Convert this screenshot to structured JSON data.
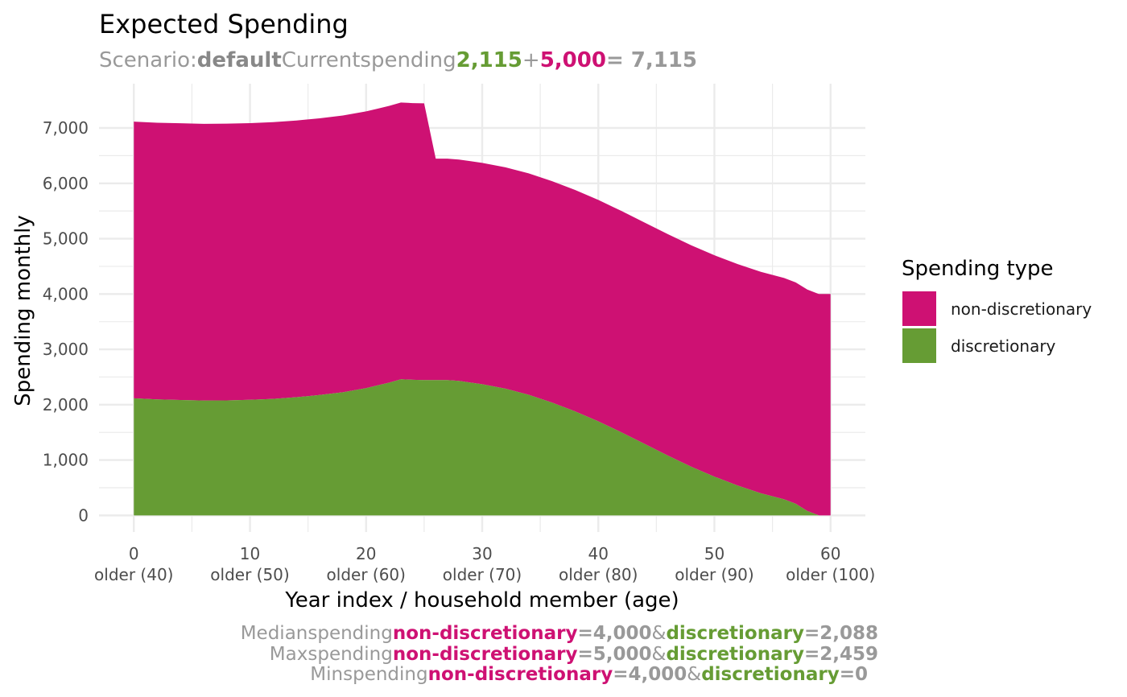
{
  "colors": {
    "non_discretionary": "#CE1173",
    "discretionary": "#669C34",
    "muted": "#999999",
    "muted_bold": "#888888",
    "grid": "#EBEBEB"
  },
  "subtitle": {
    "parts": [
      {
        "text": "Scenario:",
        "style": "muted"
      },
      {
        "text": "default",
        "style": "bold-dark"
      },
      {
        "text": "Current",
        "style": "muted"
      },
      {
        "text": "spending",
        "style": "muted"
      },
      {
        "text": "2,115",
        "style": "bold-green"
      },
      {
        "text": "+",
        "style": "muted"
      },
      {
        "text": "5,000",
        "style": "bold-magenta"
      },
      {
        "text": "= 7,115",
        "style": "bold-muted"
      }
    ]
  },
  "caption": {
    "lines": [
      {
        "parts": [
          {
            "text": "Median",
            "style": "muted"
          },
          {
            "text": "spending",
            "style": "muted"
          },
          {
            "text": "non-discretionary",
            "style": "bold-magenta"
          },
          {
            "text": "=4,000",
            "style": "bold-muted"
          },
          {
            "text": "&",
            "style": "muted"
          },
          {
            "text": "discretionary",
            "style": "bold-green"
          },
          {
            "text": "=2,088",
            "style": "bold-muted"
          }
        ]
      },
      {
        "parts": [
          {
            "text": "Max",
            "style": "muted"
          },
          {
            "text": "spending",
            "style": "muted"
          },
          {
            "text": "non-discretionary",
            "style": "bold-magenta"
          },
          {
            "text": "=5,000",
            "style": "bold-muted"
          },
          {
            "text": "&",
            "style": "muted"
          },
          {
            "text": "discretionary",
            "style": "bold-green"
          },
          {
            "text": "=2,459",
            "style": "bold-muted"
          }
        ]
      },
      {
        "parts": [
          {
            "text": "Min",
            "style": "muted"
          },
          {
            "text": "spending",
            "style": "muted"
          },
          {
            "text": "non-discretionary",
            "style": "bold-magenta"
          },
          {
            "text": "=4,000",
            "style": "bold-muted"
          },
          {
            "text": "&",
            "style": "muted"
          },
          {
            "text": "discretionary",
            "style": "bold-green"
          },
          {
            "text": "=0",
            "style": "bold-muted"
          }
        ]
      }
    ]
  },
  "chart_data": {
    "type": "area",
    "stacked": true,
    "title": "Expected Spending",
    "xlabel": "Year index / household member (age)",
    "ylabel": "Spending monthly",
    "xlim": [
      -3,
      63
    ],
    "ylim": [
      -300,
      7800
    ],
    "grid": true,
    "x_ticks": [
      {
        "value": 0,
        "label": "0",
        "sublabel": "older (40)"
      },
      {
        "value": 10,
        "label": "10",
        "sublabel": "older (50)"
      },
      {
        "value": 20,
        "label": "20",
        "sublabel": "older (60)"
      },
      {
        "value": 30,
        "label": "30",
        "sublabel": "older (70)"
      },
      {
        "value": 40,
        "label": "40",
        "sublabel": "older (80)"
      },
      {
        "value": 50,
        "label": "50",
        "sublabel": "older (90)"
      },
      {
        "value": 60,
        "label": "60",
        "sublabel": "older (100)"
      }
    ],
    "y_ticks": [
      {
        "value": 0,
        "label": "0"
      },
      {
        "value": 1000,
        "label": "1,000"
      },
      {
        "value": 2000,
        "label": "2,000"
      },
      {
        "value": 3000,
        "label": "3,000"
      },
      {
        "value": 4000,
        "label": "4,000"
      },
      {
        "value": 5000,
        "label": "5,000"
      },
      {
        "value": 6000,
        "label": "6,000"
      },
      {
        "value": 7000,
        "label": "7,000"
      }
    ],
    "legend": {
      "title": "Spending type",
      "position": "right",
      "entries": [
        {
          "name": "non-discretionary",
          "color": "#CE1173"
        },
        {
          "name": "discretionary",
          "color": "#669C34"
        }
      ]
    },
    "x": [
      0,
      2,
      4,
      6,
      8,
      10,
      12,
      14,
      16,
      18,
      20,
      21,
      22,
      23,
      24,
      25,
      26,
      27,
      28,
      29,
      30,
      32,
      34,
      36,
      38,
      40,
      42,
      44,
      46,
      48,
      50,
      52,
      54,
      56,
      57,
      58,
      59,
      60
    ],
    "series": [
      {
        "name": "discretionary",
        "color": "#669C34",
        "values": [
          2115,
          2095,
          2085,
          2075,
          2078,
          2088,
          2105,
          2135,
          2175,
          2225,
          2300,
          2350,
          2400,
          2460,
          2450,
          2445,
          2445,
          2445,
          2430,
          2400,
          2370,
          2290,
          2180,
          2040,
          1880,
          1700,
          1500,
          1290,
          1080,
          880,
          700,
          540,
          400,
          290,
          210,
          80,
          0,
          0
        ]
      },
      {
        "name": "non-discretionary",
        "color": "#CE1173",
        "values": [
          5000,
          5000,
          5000,
          5000,
          5000,
          5000,
          5000,
          5000,
          5000,
          5000,
          5000,
          5000,
          5000,
          5000,
          5000,
          5000,
          4000,
          4000,
          4000,
          4000,
          4000,
          4000,
          4000,
          4000,
          4000,
          4000,
          4000,
          4000,
          4000,
          4000,
          4000,
          4000,
          4000,
          4000,
          4000,
          4000,
          4000,
          4000
        ]
      }
    ]
  }
}
